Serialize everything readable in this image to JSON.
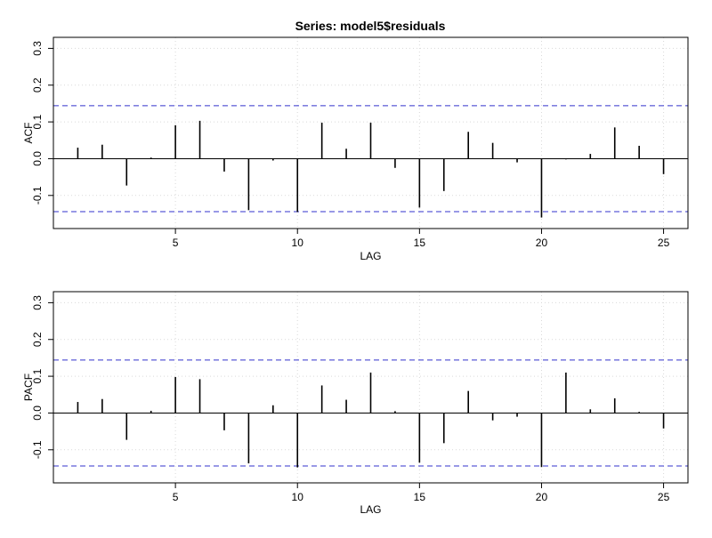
{
  "chart_data": [
    {
      "type": "bar",
      "title": "Series:  model5$residuals",
      "xlabel": "LAG",
      "ylabel": "ACF",
      "xlim": [
        0,
        26
      ],
      "ylim": [
        -0.19,
        0.33
      ],
      "xticks": [
        5,
        10,
        15,
        20,
        25
      ],
      "yticks": [
        -0.1,
        0.0,
        0.1,
        0.2,
        0.3
      ],
      "ytick_labels": [
        "-0.1",
        "0.0",
        "0.1",
        "0.2",
        "0.3"
      ],
      "grid": true,
      "confidence_bound": 0.144,
      "lags": [
        1,
        2,
        3,
        4,
        5,
        6,
        7,
        8,
        9,
        10,
        11,
        12,
        13,
        14,
        15,
        16,
        17,
        18,
        19,
        20,
        21,
        22,
        23,
        24,
        25
      ],
      "values": [
        0.03,
        0.038,
        -0.073,
        0.003,
        0.091,
        0.103,
        -0.035,
        -0.14,
        -0.005,
        -0.145,
        0.098,
        0.027,
        0.098,
        -0.025,
        -0.133,
        -0.088,
        0.073,
        0.043,
        -0.01,
        -0.16,
        -0.002,
        0.013,
        0.085,
        0.035,
        -0.042
      ],
      "colors": {
        "bars": "#000000",
        "bound": "#3333cc",
        "grid": "#d9d9d9",
        "zero": "#000000"
      }
    },
    {
      "type": "bar",
      "title": "",
      "xlabel": "LAG",
      "ylabel": "PACF",
      "xlim": [
        0,
        26
      ],
      "ylim": [
        -0.19,
        0.33
      ],
      "xticks": [
        5,
        10,
        15,
        20,
        25
      ],
      "yticks": [
        -0.1,
        0.0,
        0.1,
        0.2,
        0.3
      ],
      "ytick_labels": [
        "-0.1",
        "0.0",
        "0.1",
        "0.2",
        "0.3"
      ],
      "grid": true,
      "confidence_bound": 0.144,
      "lags": [
        1,
        2,
        3,
        4,
        5,
        6,
        7,
        8,
        9,
        10,
        11,
        12,
        13,
        14,
        15,
        16,
        17,
        18,
        19,
        20,
        21,
        22,
        23,
        24,
        25
      ],
      "values": [
        0.03,
        0.038,
        -0.073,
        0.006,
        0.098,
        0.092,
        -0.047,
        -0.137,
        0.021,
        -0.148,
        0.075,
        0.036,
        0.11,
        0.005,
        -0.135,
        -0.082,
        0.06,
        -0.02,
        -0.01,
        -0.147,
        0.11,
        0.01,
        0.04,
        0.003,
        -0.042
      ],
      "colors": {
        "bars": "#000000",
        "bound": "#3333cc",
        "grid": "#d9d9d9",
        "zero": "#000000"
      }
    }
  ]
}
